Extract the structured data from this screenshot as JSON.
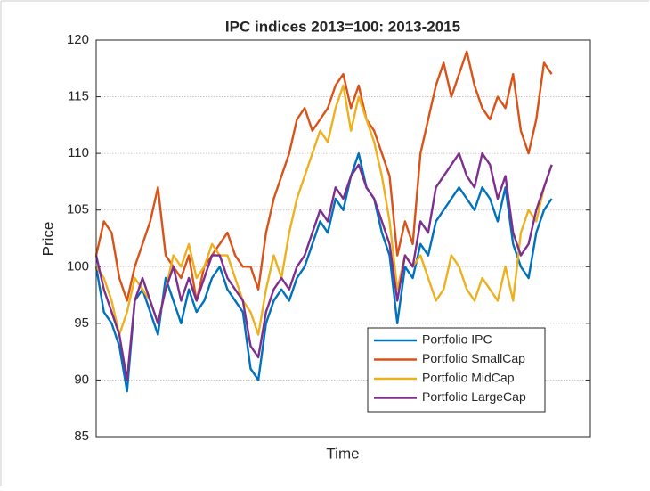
{
  "chart_data": {
    "type": "line",
    "title": "IPC indices 2013=100: 2013-2015",
    "xlabel": "Time",
    "ylabel": "Price",
    "x": [
      1,
      2,
      3,
      4,
      5,
      6,
      7,
      8,
      9,
      10,
      11,
      12,
      13,
      14,
      15,
      16,
      17,
      18,
      19,
      20,
      21,
      22,
      23,
      24,
      25,
      26,
      27,
      28,
      29,
      30,
      31,
      32,
      33,
      34,
      35,
      36,
      37,
      38,
      39,
      40,
      41,
      42,
      43,
      44,
      45,
      46,
      47,
      48,
      49,
      50,
      51,
      52,
      53,
      54,
      55,
      56,
      57,
      58,
      59,
      60
    ],
    "xlim": [
      1,
      65
    ],
    "ylim": [
      85,
      120
    ],
    "yticks": [
      85,
      90,
      95,
      100,
      105,
      110,
      115,
      120
    ],
    "grid": true,
    "legend": "southeast",
    "series": [
      {
        "name": "Portfolio IPC",
        "color": "#0072BD",
        "values": [
          100,
          96,
          95,
          93,
          89,
          97,
          98,
          96,
          94,
          99,
          97,
          95,
          98,
          96,
          97,
          99,
          100,
          98,
          97,
          96,
          91,
          90,
          95,
          97,
          98,
          97,
          99,
          100,
          102,
          104,
          103,
          106,
          105,
          108,
          110,
          107,
          106,
          103,
          101,
          95,
          100,
          99,
          102,
          101,
          104,
          105,
          106,
          107,
          106,
          105,
          107,
          106,
          104,
          107,
          102,
          100,
          99,
          103,
          105,
          106
        ]
      },
      {
        "name": "Portfolio SmallCap",
        "color": "#D95319",
        "values": [
          101,
          104,
          103,
          99,
          97,
          100,
          102,
          104,
          107,
          101,
          100,
          99,
          101,
          97,
          100,
          101,
          102,
          103,
          101,
          100,
          100,
          98,
          103,
          106,
          108,
          110,
          113,
          114,
          112,
          113,
          114,
          116,
          117,
          114,
          116,
          113,
          112,
          110,
          108,
          101,
          104,
          102,
          110,
          113,
          116,
          118,
          115,
          117,
          119,
          116,
          114,
          113,
          115,
          114,
          117,
          112,
          110,
          113,
          118,
          117
        ]
      },
      {
        "name": "Portfolio MidCap",
        "color": "#EDB120",
        "values": [
          100,
          99,
          97,
          94,
          96,
          99,
          98,
          97,
          95,
          98,
          101,
          100,
          102,
          99,
          100,
          102,
          101,
          101,
          99,
          97,
          96,
          94,
          98,
          101,
          99,
          103,
          106,
          108,
          110,
          112,
          111,
          114,
          116,
          112,
          115,
          113,
          111,
          108,
          104,
          98,
          101,
          100,
          101,
          99,
          97,
          98,
          101,
          100,
          98,
          97,
          99,
          98,
          97,
          100,
          97,
          103,
          105,
          104,
          107,
          109
        ]
      },
      {
        "name": "Portfolio LargeCap",
        "color": "#7E2F8E",
        "values": [
          101,
          98,
          96,
          94,
          90,
          97,
          99,
          97,
          95,
          98,
          100,
          97,
          99,
          97,
          99,
          101,
          101,
          99,
          98,
          97,
          93,
          92,
          96,
          98,
          99,
          98,
          100,
          101,
          103,
          105,
          104,
          107,
          106,
          108,
          109,
          107,
          106,
          104,
          102,
          97,
          101,
          100,
          104,
          103,
          107,
          108,
          109,
          110,
          108,
          107,
          110,
          109,
          106,
          108,
          103,
          101,
          102,
          105,
          107,
          109
        ]
      }
    ]
  }
}
